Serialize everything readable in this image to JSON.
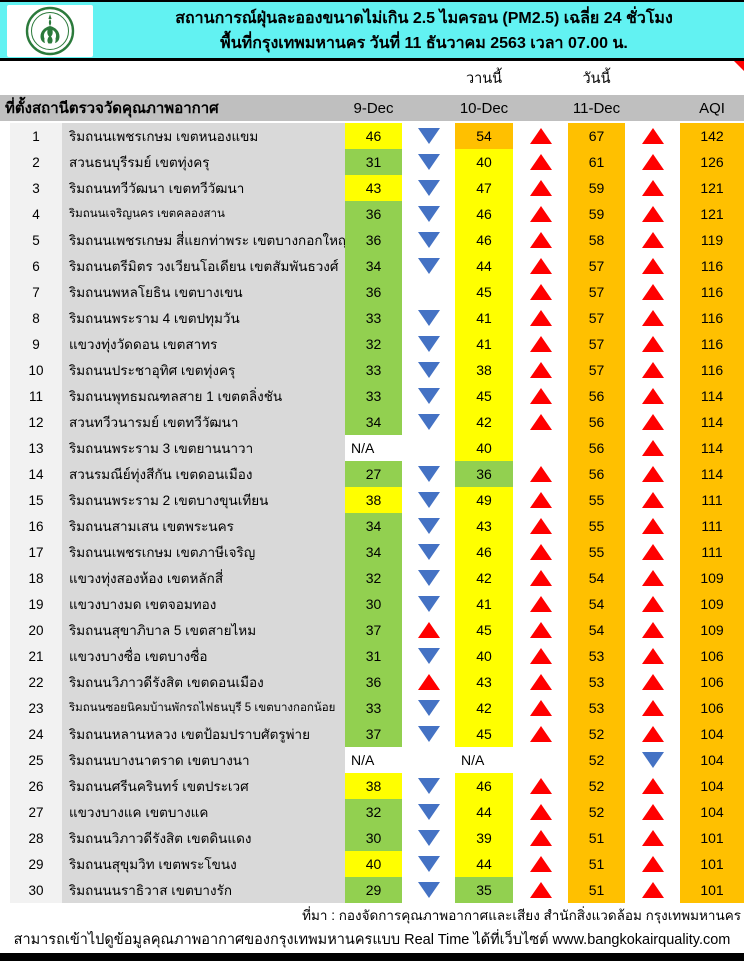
{
  "header": {
    "title_line1": "สถานการณ์ฝุ่นละอองขนาดไม่เกิน 2.5 ไมครอน (PM2.5) เฉลี่ย 24 ชั่วโมง",
    "title_line2": "พื้นที่กรุงเทพมหานคร วันที่ 11 ธันวาคม 2563 เวลา 07.00 น.",
    "logo": "bangkok-metropolitan-administration-seal"
  },
  "band": {
    "yesterday_label": "วานนี้",
    "today_label": "วันนี้"
  },
  "table": {
    "columns": {
      "station": "ที่ตั้งสถานีตรวจวัดคุณภาพอากาศ",
      "d9": "9-Dec",
      "d10": "10-Dec",
      "d11": "11-Dec",
      "aqi": "AQI"
    },
    "rows": [
      {
        "no": "1",
        "station": "ริมถนนเพชรเกษม เขตหนองแขม",
        "v9": "46",
        "c9": "y",
        "a1": "d",
        "v10": "54",
        "c10": "o",
        "a2": "u",
        "v11": "67",
        "c11": "o",
        "a3": "u",
        "aqi": "142",
        "caqi": "o"
      },
      {
        "no": "2",
        "station": "สวนธนบุรีรมย์ เขตทุ่งครุ",
        "v9": "31",
        "c9": "g",
        "a1": "d",
        "v10": "40",
        "c10": "y",
        "a2": "u",
        "v11": "61",
        "c11": "o",
        "a3": "u",
        "aqi": "126",
        "caqi": "o"
      },
      {
        "no": "3",
        "station": "ริมถนนทวีวัฒนา เขตทวีวัฒนา",
        "v9": "43",
        "c9": "y",
        "a1": "d",
        "v10": "47",
        "c10": "y",
        "a2": "u",
        "v11": "59",
        "c11": "o",
        "a3": "u",
        "aqi": "121",
        "caqi": "o"
      },
      {
        "no": "4",
        "station": "ริมถนนเจริญนคร เขตคลองสาน",
        "sm": 1,
        "v9": "36",
        "c9": "g",
        "a1": "d",
        "v10": "46",
        "c10": "y",
        "a2": "u",
        "v11": "59",
        "c11": "o",
        "a3": "u",
        "aqi": "121",
        "caqi": "o"
      },
      {
        "no": "5",
        "station": "ริมถนนเพชรเกษม สี่แยกท่าพระ เขตบางกอกใหญ่",
        "v9": "36",
        "c9": "g",
        "a1": "d",
        "v10": "46",
        "c10": "y",
        "a2": "u",
        "v11": "58",
        "c11": "o",
        "a3": "u",
        "aqi": "119",
        "caqi": "o"
      },
      {
        "no": "6",
        "station": "ริมถนนตรีมิตร วงเวียนโอเดียน เขตสัมพันธวงศ์",
        "v9": "34",
        "c9": "g",
        "a1": "d",
        "v10": "44",
        "c10": "y",
        "a2": "u",
        "v11": "57",
        "c11": "o",
        "a3": "u",
        "aqi": "116",
        "caqi": "o"
      },
      {
        "no": "7",
        "station": "ริมถนนพหลโยธิน เขตบางเขน",
        "v9": "36",
        "c9": "g",
        "a1": "",
        "v10": "45",
        "c10": "y",
        "a2": "u",
        "v11": "57",
        "c11": "o",
        "a3": "u",
        "aqi": "116",
        "caqi": "o"
      },
      {
        "no": "8",
        "station": "ริมถนนพระราม 4 เขตปทุมวัน",
        "v9": "33",
        "c9": "g",
        "a1": "d",
        "v10": "41",
        "c10": "y",
        "a2": "u",
        "v11": "57",
        "c11": "o",
        "a3": "u",
        "aqi": "116",
        "caqi": "o"
      },
      {
        "no": "9",
        "station": "แขวงทุ่งวัดดอน เขตสาทร",
        "v9": "32",
        "c9": "g",
        "a1": "d",
        "v10": "41",
        "c10": "y",
        "a2": "u",
        "v11": "57",
        "c11": "o",
        "a3": "u",
        "aqi": "116",
        "caqi": "o"
      },
      {
        "no": "10",
        "station": "ริมถนนประชาอุทิศ เขตทุ่งครุ",
        "v9": "33",
        "c9": "g",
        "a1": "d",
        "v10": "38",
        "c10": "y",
        "a2": "u",
        "v11": "57",
        "c11": "o",
        "a3": "u",
        "aqi": "116",
        "caqi": "o"
      },
      {
        "no": "11",
        "station": "ริมถนนพุทธมณฑลสาย 1 เขตตลิ่งชัน",
        "v9": "33",
        "c9": "g",
        "a1": "d",
        "v10": "45",
        "c10": "y",
        "a2": "u",
        "v11": "56",
        "c11": "o",
        "a3": "u",
        "aqi": "114",
        "caqi": "o"
      },
      {
        "no": "12",
        "station": "สวนทวีวนารมย์ เขตทวีวัฒนา",
        "v9": "34",
        "c9": "g",
        "a1": "d",
        "v10": "42",
        "c10": "y",
        "a2": "u",
        "v11": "56",
        "c11": "o",
        "a3": "u",
        "aqi": "114",
        "caqi": "o"
      },
      {
        "no": "13",
        "station": "ริมถนนพระราม 3 เขตยานนาวา",
        "v9": "N/A",
        "c9": "w",
        "a1": "",
        "v10": "40",
        "c10": "y",
        "a2": "",
        "v11": "56",
        "c11": "o",
        "a3": "u",
        "aqi": "114",
        "caqi": "o"
      },
      {
        "no": "14",
        "station": "สวนรมณีย์ทุ่งสีกัน เขตดอนเมือง",
        "v9": "27",
        "c9": "g",
        "a1": "d",
        "v10": "36",
        "c10": "g",
        "a2": "u",
        "v11": "56",
        "c11": "o",
        "a3": "u",
        "aqi": "114",
        "caqi": "o"
      },
      {
        "no": "15",
        "station": "ริมถนนพระราม 2 เขตบางขุนเทียน",
        "v9": "38",
        "c9": "y",
        "a1": "d",
        "v10": "49",
        "c10": "y",
        "a2": "u",
        "v11": "55",
        "c11": "o",
        "a3": "u",
        "aqi": "111",
        "caqi": "o"
      },
      {
        "no": "16",
        "station": "ริมถนนสามเสน เขตพระนคร",
        "v9": "34",
        "c9": "g",
        "a1": "d",
        "v10": "43",
        "c10": "y",
        "a2": "u",
        "v11": "55",
        "c11": "o",
        "a3": "u",
        "aqi": "111",
        "caqi": "o"
      },
      {
        "no": "17",
        "station": "ริมถนนเพชรเกษม เขตภาษีเจริญ",
        "v9": "34",
        "c9": "g",
        "a1": "d",
        "v10": "46",
        "c10": "y",
        "a2": "u",
        "v11": "55",
        "c11": "o",
        "a3": "u",
        "aqi": "111",
        "caqi": "o"
      },
      {
        "no": "18",
        "station": "แขวงทุ่งสองห้อง เขตหลักสี่",
        "v9": "32",
        "c9": "g",
        "a1": "d",
        "v10": "42",
        "c10": "y",
        "a2": "u",
        "v11": "54",
        "c11": "o",
        "a3": "u",
        "aqi": "109",
        "caqi": "o"
      },
      {
        "no": "19",
        "station": "แขวงบางมด เขตจอมทอง",
        "v9": "30",
        "c9": "g",
        "a1": "d",
        "v10": "41",
        "c10": "y",
        "a2": "u",
        "v11": "54",
        "c11": "o",
        "a3": "u",
        "aqi": "109",
        "caqi": "o"
      },
      {
        "no": "20",
        "station": "ริมถนนสุขาภิบาล 5 เขตสายไหม",
        "v9": "37",
        "c9": "g",
        "a1": "u",
        "v10": "45",
        "c10": "y",
        "a2": "u",
        "v11": "54",
        "c11": "o",
        "a3": "u",
        "aqi": "109",
        "caqi": "o"
      },
      {
        "no": "21",
        "station": "แขวงบางซื่อ เขตบางซื่อ",
        "v9": "31",
        "c9": "g",
        "a1": "d",
        "v10": "40",
        "c10": "y",
        "a2": "u",
        "v11": "53",
        "c11": "o",
        "a3": "u",
        "aqi": "106",
        "caqi": "o"
      },
      {
        "no": "22",
        "station": "ริมถนนวิภาวดีรังสิต เขตดอนเมือง",
        "v9": "36",
        "c9": "g",
        "a1": "u",
        "v10": "43",
        "c10": "y",
        "a2": "u",
        "v11": "53",
        "c11": "o",
        "a3": "u",
        "aqi": "106",
        "caqi": "o"
      },
      {
        "no": "23",
        "station": "ริมถนนซอยนิคมบ้านพักรถไฟธนบุรี 5 เขตบางกอกน้อย",
        "sm": 1,
        "v9": "33",
        "c9": "g",
        "a1": "d",
        "v10": "42",
        "c10": "y",
        "a2": "u",
        "v11": "53",
        "c11": "o",
        "a3": "u",
        "aqi": "106",
        "caqi": "o"
      },
      {
        "no": "24",
        "station": "ริมถนนหลานหลวง เขตป้อมปราบศัตรูพ่าย",
        "v9": "37",
        "c9": "g",
        "a1": "d",
        "v10": "45",
        "c10": "y",
        "a2": "u",
        "v11": "52",
        "c11": "o",
        "a3": "u",
        "aqi": "104",
        "caqi": "o"
      },
      {
        "no": "25",
        "station": "ริมถนนบางนาตราด เขตบางนา",
        "v9": "N/A",
        "c9": "w",
        "a1": "",
        "v10": "N/A",
        "c10": "w",
        "a2": "",
        "v11": "52",
        "c11": "o",
        "a3": "d",
        "aqi": "104",
        "caqi": "o"
      },
      {
        "no": "26",
        "station": "ริมถนนศรีนครินทร์ เขตประเวศ",
        "v9": "38",
        "c9": "y",
        "a1": "d",
        "v10": "46",
        "c10": "y",
        "a2": "u",
        "v11": "52",
        "c11": "o",
        "a3": "u",
        "aqi": "104",
        "caqi": "o"
      },
      {
        "no": "27",
        "station": "แขวงบางแค เขตบางแค",
        "v9": "32",
        "c9": "g",
        "a1": "d",
        "v10": "44",
        "c10": "y",
        "a2": "u",
        "v11": "52",
        "c11": "o",
        "a3": "u",
        "aqi": "104",
        "caqi": "o"
      },
      {
        "no": "28",
        "station": "ริมถนนวิภาวดีรังสิต เขตดินแดง",
        "v9": "30",
        "c9": "g",
        "a1": "d",
        "v10": "39",
        "c10": "y",
        "a2": "u",
        "v11": "51",
        "c11": "o",
        "a3": "u",
        "aqi": "101",
        "caqi": "o"
      },
      {
        "no": "29",
        "station": "ริมถนนสุขุมวิท เขตพระโขนง",
        "v9": "40",
        "c9": "y",
        "a1": "d",
        "v10": "44",
        "c10": "y",
        "a2": "u",
        "v11": "51",
        "c11": "o",
        "a3": "u",
        "aqi": "101",
        "caqi": "o"
      },
      {
        "no": "30",
        "station": "ริมถนนนราธิวาส เขตบางรัก",
        "v9": "29",
        "c9": "g",
        "a1": "d",
        "v10": "35",
        "c10": "g",
        "a2": "u",
        "v11": "51",
        "c11": "o",
        "a3": "u",
        "aqi": "101",
        "caqi": "o"
      }
    ]
  },
  "footer": {
    "source_line": "ที่มา : กองจัดการคุณภาพอากาศและเสียง สำนักสิ่งแวดล้อม กรุงเทพมหานคร",
    "realtime_line": "สามารถเข้าไปดูข้อมูลคุณภาพอากาศของกรุงเทพมหานครแบบ Real Time ได้ที่เว็บไซต์ www.bangkokairquality.com"
  },
  "colors": {
    "cyan_header": "#62F2F2",
    "green_cell": "#92D050",
    "yellow_cell": "#FFFF00",
    "orange_cell": "#FFC000",
    "arrow_up_red": "#FF0000",
    "arrow_down_blue": "#4472C4",
    "table_header_gray": "#BFBFBF",
    "station_col_gray": "#D9D9D9",
    "number_col_gray": "#F2F2F2"
  }
}
